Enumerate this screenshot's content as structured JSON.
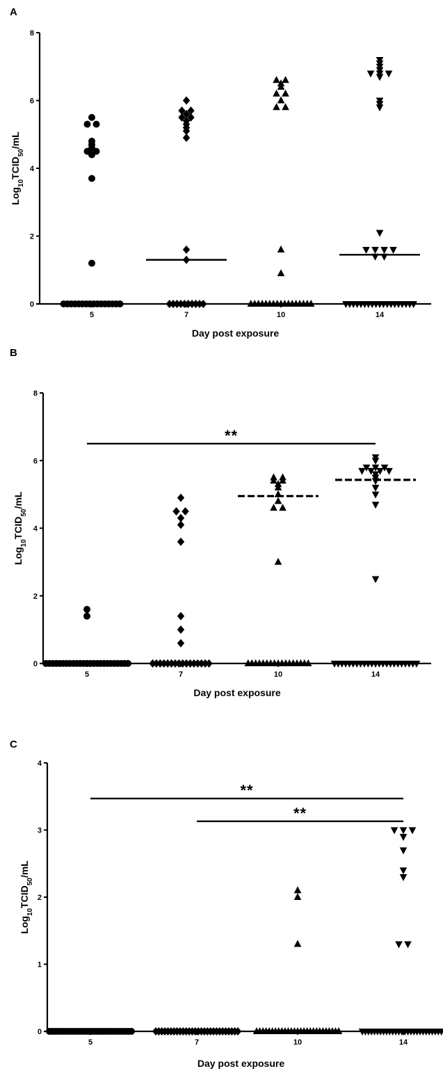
{
  "figure": {
    "background": "#ffffff",
    "ink": "#000000"
  },
  "chart_data": [
    {
      "panel": "A",
      "type": "scatter",
      "xlabel": "Day post exposure",
      "ylabel_parts": {
        "pre": "Log",
        "sub1": "10",
        "mid": "TCID",
        "sub2": "50",
        "post": "/mL"
      },
      "ylim": [
        0,
        8
      ],
      "yticks": [
        0,
        2,
        4,
        6,
        8
      ],
      "categories": [
        "5",
        "7",
        "10",
        "14"
      ],
      "markers": [
        "circle",
        "diamond",
        "triangle-up",
        "triangle-down"
      ],
      "series": [
        {
          "category": "5",
          "marker": "circle",
          "values": [
            5.5,
            5.3,
            5.3,
            4.8,
            4.7,
            4.6,
            4.5,
            4.5,
            4.4,
            3.7,
            1.2,
            0,
            0,
            0,
            0,
            0,
            0,
            0,
            0,
            0,
            0,
            0,
            0,
            0,
            0,
            0,
            0
          ]
        },
        {
          "category": "7",
          "marker": "diamond",
          "values": [
            6.0,
            5.7,
            5.7,
            5.6,
            5.5,
            5.5,
            5.4,
            5.3,
            5.2,
            5.1,
            4.9,
            1.6,
            1.3,
            0,
            0,
            0,
            0,
            0,
            0,
            0,
            0,
            0,
            0
          ]
        },
        {
          "category": "10",
          "marker": "triangle-up",
          "values": [
            6.6,
            6.6,
            6.5,
            6.4,
            6.2,
            6.2,
            6.0,
            5.8,
            5.8,
            1.6,
            0.9,
            0,
            0,
            0,
            0,
            0,
            0,
            0,
            0,
            0,
            0,
            0,
            0,
            0,
            0,
            0,
            0,
            0
          ]
        },
        {
          "category": "14",
          "marker": "triangle-down",
          "values": [
            7.2,
            7.1,
            7.0,
            6.9,
            6.8,
            6.8,
            6.8,
            6.7,
            6.0,
            5.9,
            5.8,
            2.1,
            1.6,
            1.6,
            1.6,
            1.6,
            1.4,
            1.4,
            0,
            0,
            0,
            0,
            0,
            0,
            0,
            0,
            0,
            0,
            0,
            0,
            0,
            0,
            0,
            0,
            0,
            0,
            0
          ]
        }
      ],
      "medians": [
        {
          "category": "7",
          "value": 1.3,
          "style": "solid"
        },
        {
          "category": "14",
          "value": 1.45,
          "style": "solid"
        }
      ],
      "significance": []
    },
    {
      "panel": "B",
      "type": "scatter",
      "xlabel": "Day post exposure",
      "ylabel_parts": {
        "pre": "Log",
        "sub1": "10",
        "mid": "TCID",
        "sub2": "50",
        "post": "/mL"
      },
      "ylim": [
        0,
        8
      ],
      "yticks": [
        0,
        2,
        4,
        6,
        8
      ],
      "categories": [
        "5",
        "7",
        "10",
        "14"
      ],
      "markers": [
        "circle",
        "diamond",
        "triangle-up",
        "triangle-down"
      ],
      "series": [
        {
          "category": "5",
          "marker": "circle",
          "values": [
            1.6,
            1.4,
            0,
            0,
            0,
            0,
            0,
            0,
            0,
            0,
            0,
            0,
            0,
            0,
            0,
            0,
            0,
            0,
            0,
            0,
            0,
            0,
            0,
            0,
            0,
            0,
            0
          ]
        },
        {
          "category": "7",
          "marker": "diamond",
          "values": [
            4.9,
            4.5,
            4.5,
            4.3,
            4.1,
            3.6,
            1.4,
            1.0,
            0.6,
            0,
            0,
            0,
            0,
            0,
            0,
            0,
            0,
            0,
            0,
            0,
            0,
            0,
            0,
            0,
            0
          ]
        },
        {
          "category": "10",
          "marker": "triangle-up",
          "values": [
            5.5,
            5.5,
            5.4,
            5.4,
            5.3,
            5.2,
            5.0,
            4.8,
            4.6,
            4.6,
            3.0,
            0,
            0,
            0,
            0,
            0,
            0,
            0,
            0,
            0,
            0,
            0,
            0,
            0,
            0,
            0,
            0,
            0
          ]
        },
        {
          "category": "14",
          "marker": "triangle-down",
          "values": [
            6.1,
            6.0,
            5.8,
            5.8,
            5.8,
            5.7,
            5.7,
            5.7,
            5.7,
            5.6,
            5.5,
            5.4,
            5.2,
            5.0,
            4.7,
            2.5,
            0,
            0,
            0,
            0,
            0,
            0,
            0,
            0,
            0,
            0,
            0,
            0,
            0,
            0,
            0,
            0,
            0,
            0,
            0,
            0,
            0,
            0,
            0
          ]
        }
      ],
      "medians": [
        {
          "category": "10",
          "value": 4.95,
          "style": "dashed"
        },
        {
          "category": "14",
          "value": 5.43,
          "style": "dashed"
        }
      ],
      "significance": [
        {
          "from": "5",
          "to": "14",
          "value": 6.5,
          "label": "**"
        }
      ]
    },
    {
      "panel": "C",
      "type": "scatter",
      "xlabel": "Day post exposure",
      "ylabel_parts": {
        "pre": "Log",
        "sub1": "10",
        "mid": "TCID",
        "sub2": "50",
        "post": "/mL"
      },
      "ylim": [
        0,
        4
      ],
      "yticks": [
        0,
        1,
        2,
        3,
        4
      ],
      "categories": [
        "5",
        "7",
        "10",
        "14"
      ],
      "markers": [
        "circle",
        "diamond",
        "triangle-up",
        "triangle-down"
      ],
      "series": [
        {
          "category": "5",
          "marker": "circle",
          "values": [
            0,
            0,
            0,
            0,
            0,
            0,
            0,
            0,
            0,
            0,
            0,
            0,
            0,
            0,
            0,
            0,
            0,
            0,
            0,
            0,
            0,
            0,
            0,
            0,
            0,
            0,
            0,
            0,
            0,
            0
          ]
        },
        {
          "category": "7",
          "marker": "diamond",
          "values": [
            0,
            0,
            0,
            0,
            0,
            0,
            0,
            0,
            0,
            0,
            0,
            0,
            0,
            0,
            0,
            0,
            0,
            0,
            0,
            0,
            0,
            0,
            0,
            0,
            0,
            0,
            0,
            0
          ]
        },
        {
          "category": "10",
          "marker": "triangle-up",
          "values": [
            2.1,
            2.0,
            1.3,
            0,
            0,
            0,
            0,
            0,
            0,
            0,
            0,
            0,
            0,
            0,
            0,
            0,
            0,
            0,
            0,
            0,
            0,
            0,
            0,
            0,
            0,
            0,
            0,
            0,
            0,
            0
          ]
        },
        {
          "category": "14",
          "marker": "triangle-down",
          "values": [
            3.0,
            3.0,
            3.0,
            2.9,
            2.7,
            2.4,
            2.3,
            1.3,
            1.3,
            0,
            0,
            0,
            0,
            0,
            0,
            0,
            0,
            0,
            0,
            0,
            0,
            0,
            0,
            0,
            0,
            0,
            0,
            0,
            0,
            0,
            0,
            0,
            0,
            0,
            0,
            0,
            0
          ]
        }
      ],
      "medians": [],
      "significance": [
        {
          "from": "5",
          "to": "14",
          "value": 3.47,
          "label": "**"
        },
        {
          "from": "7",
          "to": "14",
          "value": 3.13,
          "label": "**"
        }
      ]
    }
  ]
}
